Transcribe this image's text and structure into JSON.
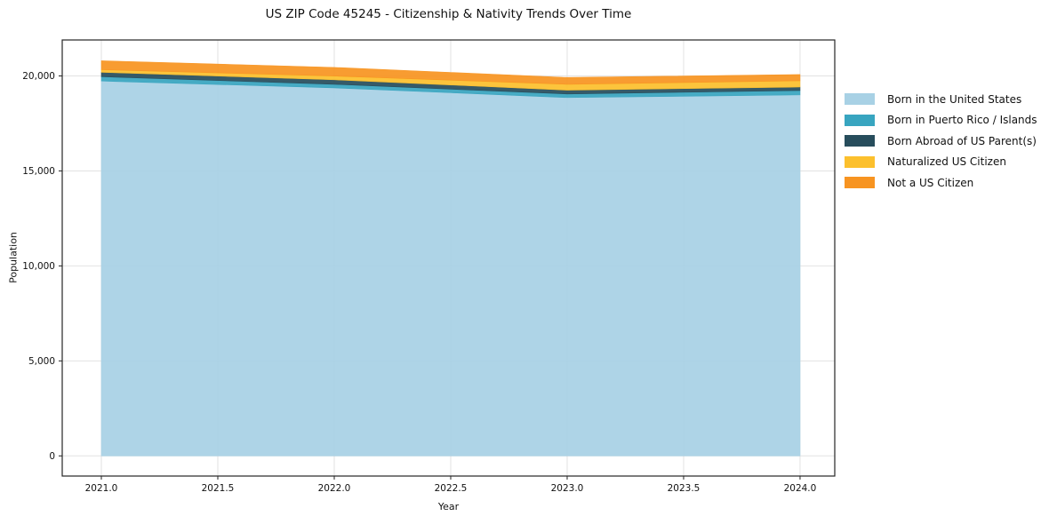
{
  "chart_data": {
    "type": "area",
    "stacked": true,
    "title": "US ZIP Code 45245 - Citizenship & Nativity Trends Over Time",
    "xlabel": "Year",
    "ylabel": "Population",
    "x": [
      2021,
      2022,
      2023,
      2024
    ],
    "series": [
      {
        "name": "Born in the United States",
        "color": "#a8d1e5",
        "values": [
          19730,
          19370,
          18860,
          19000
        ]
      },
      {
        "name": "Born in Puerto Rico / Islands",
        "color": "#38a5c0",
        "values": [
          230,
          190,
          190,
          230
        ]
      },
      {
        "name": "Born Abroad of US Parent(s)",
        "color": "#274d5c",
        "values": [
          230,
          235,
          200,
          185
        ]
      },
      {
        "name": "Naturalized US Citizen",
        "color": "#fcc02d",
        "values": [
          140,
          200,
          310,
          330
        ]
      },
      {
        "name": "Not a US Citizen",
        "color": "#f79421",
        "values": [
          470,
          455,
          360,
          330
        ]
      }
    ],
    "totals": [
      20800,
      20450,
      19920,
      20075
    ],
    "xlim": [
      2020.832,
      2024.149
    ],
    "ylim": [
      -1061,
      21893
    ],
    "x_ticks": [
      2021.0,
      2021.5,
      2022.0,
      2022.5,
      2023.0,
      2023.5,
      2024.0
    ],
    "x_tick_labels": [
      "2021.0",
      "2021.5",
      "2022.0",
      "2022.5",
      "2023.0",
      "2023.5",
      "2024.0"
    ],
    "y_ticks": [
      0,
      5000,
      10000,
      15000,
      20000
    ],
    "y_tick_labels": [
      "0",
      "5,000",
      "10,000",
      "15,000",
      "20,000"
    ],
    "grid": true,
    "legend_position": "right-outside",
    "colors": {
      "grid": "#e2e2e2",
      "spine": "#262626",
      "tick": "#262626",
      "text": "#111111",
      "background": "#ffffff"
    }
  }
}
